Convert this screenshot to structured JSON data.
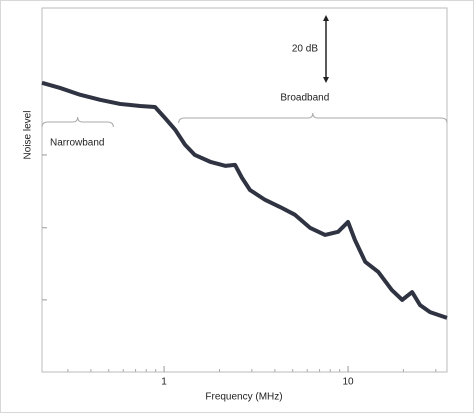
{
  "chart_data": {
    "type": "line",
    "xlabel": "Frequency (MHz)",
    "ylabel": "Noise level",
    "xlog": true,
    "xlim": [
      0.217,
      34.5
    ],
    "ylim": [
      0,
      107
    ],
    "xticks": [
      1,
      10
    ],
    "minor_xticks": [
      0.3,
      0.4,
      0.5,
      0.6,
      0.7,
      0.8,
      0.9,
      2,
      3,
      4,
      5,
      6,
      7,
      8,
      9,
      20,
      30
    ],
    "unlabeled_yticks": [
      21.2,
      42.4,
      63.8
    ],
    "series": [
      {
        "color": "#2f3342",
        "x": [
          0.217,
          0.272,
          0.349,
          0.449,
          0.576,
          0.741,
          0.893,
          1.01,
          1.15,
          1.3,
          1.47,
          1.78,
          2.15,
          2.43,
          2.65,
          2.93,
          3.54,
          4.27,
          5.15,
          6.21,
          7.5,
          8.83,
          10.0,
          10.9,
          12.4,
          14.6,
          17.3,
          19.7,
          22.3,
          24.6,
          27.9,
          34.5
        ],
        "values": [
          85.0,
          83.5,
          81.5,
          80.0,
          78.8,
          78.2,
          77.9,
          74.7,
          71.2,
          66.8,
          63.8,
          61.8,
          60.6,
          60.9,
          57.1,
          53.5,
          50.6,
          48.5,
          46.2,
          42.4,
          40.3,
          41.2,
          44.1,
          38.8,
          32.4,
          29.4,
          24.1,
          21.2,
          23.5,
          19.7,
          17.6,
          15.9
        ]
      }
    ],
    "scale_annotation": {
      "text": "20 dB",
      "value": 20
    },
    "bands": [
      {
        "label": "Narrowband",
        "range": [
          0.217,
          0.53
        ]
      },
      {
        "label": "Broadband",
        "range": [
          1.2,
          34.5
        ]
      }
    ]
  }
}
